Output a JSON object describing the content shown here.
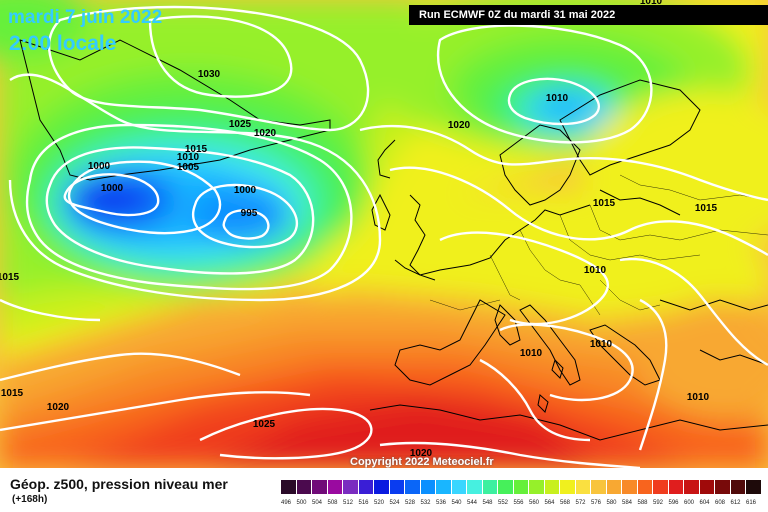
{
  "header": {
    "date": "mardi 7 juin 2022",
    "time": "2:00 locale",
    "run": "Run ECMWF 0Z du mardi 31 mai 2022"
  },
  "copyright": "Copyright 2022 Meteociel.fr",
  "legend": {
    "title": "Géop. z500, pression niveau mer",
    "subtitle": "(+168h)",
    "scale": [
      {
        "value": "496",
        "color": "#2a0a28"
      },
      {
        "value": "500",
        "color": "#4b0a4e"
      },
      {
        "value": "504",
        "color": "#700a78"
      },
      {
        "value": "508",
        "color": "#9a0aa0"
      },
      {
        "value": "512",
        "color": "#7a2cc0"
      },
      {
        "value": "516",
        "color": "#3a1ed6"
      },
      {
        "value": "520",
        "color": "#0a1ae0"
      },
      {
        "value": "524",
        "color": "#0a3cf0"
      },
      {
        "value": "528",
        "color": "#0a66f8"
      },
      {
        "value": "532",
        "color": "#0a90ff"
      },
      {
        "value": "536",
        "color": "#19b6ff"
      },
      {
        "value": "540",
        "color": "#39d6ff"
      },
      {
        "value": "544",
        "color": "#46f0e0"
      },
      {
        "value": "548",
        "color": "#3cf0a0"
      },
      {
        "value": "552",
        "color": "#46f05a"
      },
      {
        "value": "556",
        "color": "#66f03a"
      },
      {
        "value": "560",
        "color": "#96f02a"
      },
      {
        "value": "564",
        "color": "#c8f01e"
      },
      {
        "value": "568",
        "color": "#f0f01e"
      },
      {
        "value": "572",
        "color": "#fae040"
      },
      {
        "value": "576",
        "color": "#f8c43c"
      },
      {
        "value": "580",
        "color": "#f8a832"
      },
      {
        "value": "584",
        "color": "#f88a28"
      },
      {
        "value": "588",
        "color": "#f8641e"
      },
      {
        "value": "592",
        "color": "#f03c1e"
      },
      {
        "value": "596",
        "color": "#e01e1e"
      },
      {
        "value": "600",
        "color": "#c81414"
      },
      {
        "value": "604",
        "color": "#a00a0a"
      },
      {
        "value": "608",
        "color": "#780a0a"
      },
      {
        "value": "612",
        "color": "#500a0a"
      },
      {
        "value": "616",
        "color": "#1e0a0a"
      }
    ]
  },
  "isobars": [
    {
      "label": "1030"
    },
    {
      "label": "1025"
    },
    {
      "label": "1020"
    },
    {
      "label": "1015"
    },
    {
      "label": "1010"
    },
    {
      "label": "1005"
    },
    {
      "label": "1000"
    },
    {
      "label": "1000"
    },
    {
      "label": "1000"
    },
    {
      "label": "995"
    },
    {
      "label": "1010"
    },
    {
      "label": "1020"
    },
    {
      "label": "1015"
    },
    {
      "label": "1015"
    },
    {
      "label": "1010"
    },
    {
      "label": "1010"
    },
    {
      "label": "1010"
    },
    {
      "label": "1010"
    },
    {
      "label": "1015"
    },
    {
      "label": "1020"
    },
    {
      "label": "1025"
    },
    {
      "label": "1020"
    },
    {
      "label": "1015"
    },
    {
      "label": "1010"
    }
  ]
}
